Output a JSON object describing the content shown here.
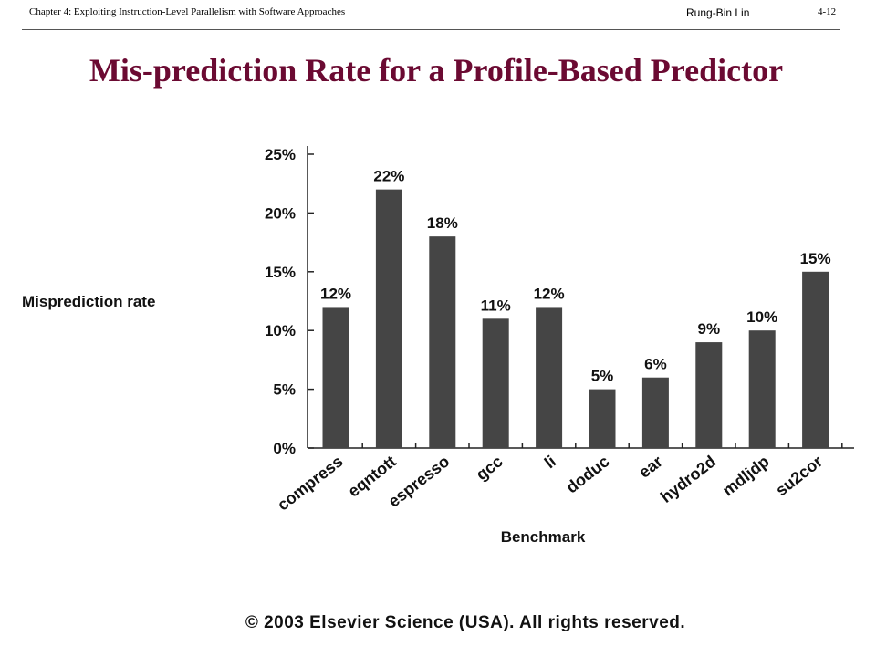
{
  "header": {
    "chapter": "Chapter 4: Exploiting Instruction-Level Parallelism with Software Approaches",
    "author": "Rung-Bin Lin",
    "page": "4-12"
  },
  "slide_title": "Mis-prediction Rate for a Profile-Based Predictor",
  "copyright": "© 2003 Elsevier Science (USA). All rights reserved.",
  "colors": {
    "title": "#6b0a32",
    "bar": "#454545"
  },
  "chart_data": {
    "type": "bar",
    "title": "",
    "xlabel": "Benchmark",
    "ylabel": "Misprediction rate",
    "categories": [
      "compress",
      "eqntott",
      "espresso",
      "gcc",
      "li",
      "doduc",
      "ear",
      "hydro2d",
      "mdljdp",
      "su2cor"
    ],
    "values": [
      12,
      22,
      18,
      11,
      12,
      5,
      6,
      9,
      10,
      15
    ],
    "data_labels": [
      "12%",
      "22%",
      "18%",
      "11%",
      "12%",
      "5%",
      "6%",
      "9%",
      "10%",
      "15%"
    ],
    "ylim": [
      0,
      25
    ],
    "yticks": [
      0,
      5,
      10,
      15,
      20,
      25
    ],
    "ytick_labels": [
      "0%",
      "5%",
      "10%",
      "15%",
      "20%",
      "25%"
    ],
    "grid": false,
    "legend": "none"
  }
}
